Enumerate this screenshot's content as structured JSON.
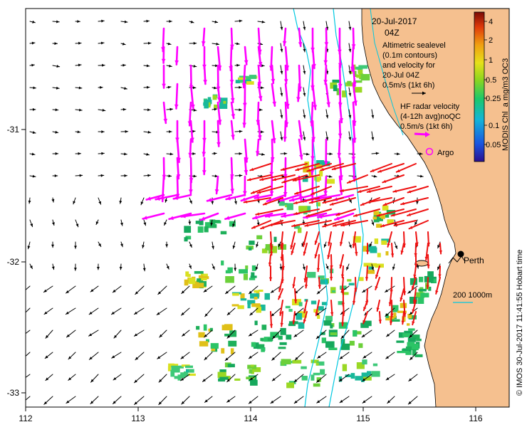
{
  "map": {
    "date": "20-Jul-2017",
    "time": "04Z",
    "info_lines": [
      "Altimetric sealevel",
      "(0.1m contours)",
      "and velocity for",
      "20-Jul 04Z",
      "0.5m/s (1kt 6h)"
    ],
    "hf_lines": [
      "HF radar velocity",
      "(4-12h avg)noQC",
      "0.5m/s (1kt 6h)"
    ],
    "argo_label": "Argo",
    "city_label": "Perth",
    "depth_label": "200  1000m",
    "colorbar_title": "MODIS Chl_a mg/m3 OC3",
    "colorbar_ticks": [
      "4",
      "2",
      "1",
      "0.5",
      "0.25",
      "0.1",
      "0.05"
    ],
    "footer_credit": "© IMOS 30-Jul-2017 11:41:55 Hobart time",
    "x_ticks": [
      "112",
      "113",
      "114",
      "115",
      "116"
    ],
    "y_ticks": [
      "-31",
      "-32",
      "-33"
    ],
    "colors": {
      "land": "#f5c08f",
      "altimetry_arrow": "#000000",
      "hf_south": "#ff00ff",
      "hf_north": "#ee1111",
      "isobath": "#00c8e0",
      "argo": "#ff00ff"
    }
  }
}
